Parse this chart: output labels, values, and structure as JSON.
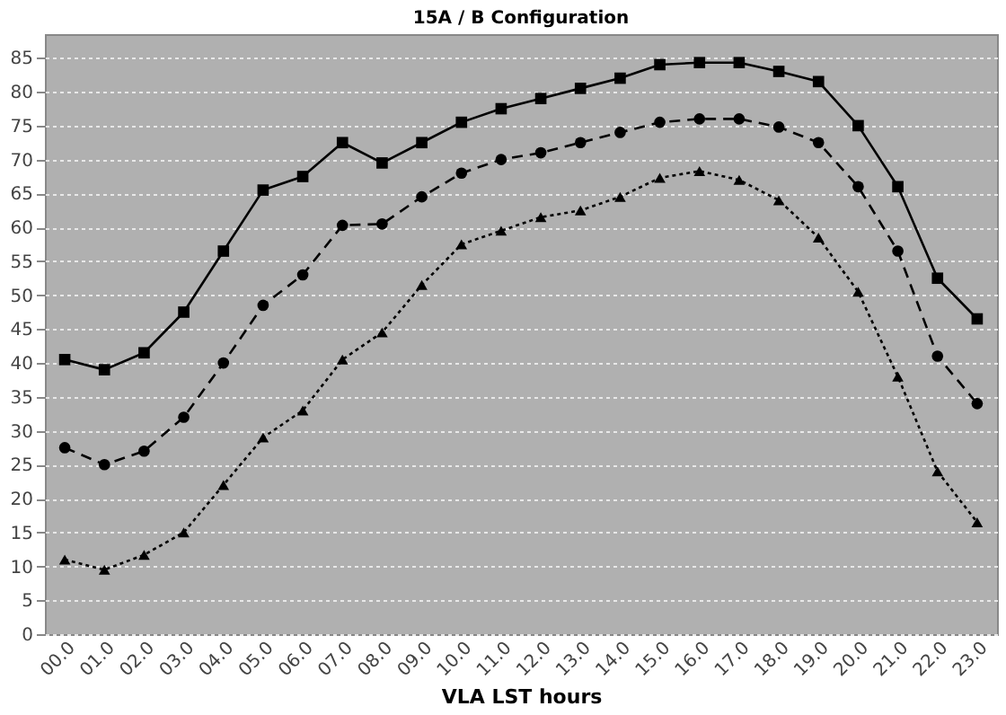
{
  "chart_data": {
    "type": "line",
    "title": "15A / B Configuration",
    "xlabel": "VLA LST hours",
    "categories": [
      "00.0",
      "01.0",
      "02.0",
      "03.0",
      "04.0",
      "05.0",
      "06.0",
      "07.0",
      "08.0",
      "09.0",
      "10.0",
      "11.0",
      "12.0",
      "13.0",
      "14.0",
      "15.0",
      "16.0",
      "17.0",
      "18.0",
      "19.0",
      "20.0",
      "21.0",
      "22.0",
      "23.0"
    ],
    "series": [
      {
        "color": "#000000",
        "marker": "square",
        "line_style": "solid",
        "values": [
          40.5,
          39,
          41.5,
          47.5,
          56.5,
          65.5,
          67.5,
          72.5,
          69.5,
          72.5,
          75.5,
          77.5,
          79,
          80.5,
          82,
          84,
          84.3,
          84.3,
          83,
          81.5,
          75,
          66,
          52.5,
          46.5
        ]
      },
      {
        "color": "#000000",
        "marker": "circle",
        "line_style": "dashed",
        "values": [
          27.5,
          25,
          27,
          32,
          40,
          48.5,
          53,
          60.3,
          60.5,
          64.5,
          68,
          70,
          71,
          72.5,
          74,
          75.5,
          76,
          76,
          74.8,
          72.5,
          66,
          56.5,
          41,
          34
        ]
      },
      {
        "color": "#000000",
        "marker": "triangle",
        "line_style": "dotted",
        "values": [
          11,
          9.5,
          11.7,
          15,
          22,
          29,
          33,
          40.5,
          44.5,
          51.5,
          57.5,
          59.5,
          61.5,
          62.5,
          64.5,
          67.3,
          68.3,
          67,
          64,
          58.5,
          50.5,
          38,
          24,
          16.5
        ]
      }
    ],
    "ylim": [
      0,
      88.5
    ],
    "yticks": [
      0,
      5,
      10,
      15,
      20,
      25,
      30,
      35,
      40,
      45,
      50,
      55,
      60,
      65,
      70,
      75,
      80,
      85
    ],
    "grid": "y"
  }
}
